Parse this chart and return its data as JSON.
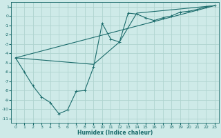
{
  "xlabel": "Humidex (Indice chaleur)",
  "background_color": "#ceeae8",
  "grid_color": "#afd4d0",
  "line_color": "#1a6b6b",
  "xlim": [
    -0.5,
    23.5
  ],
  "ylim": [
    -11.5,
    1.5
  ],
  "yticks": [
    1,
    0,
    -1,
    -2,
    -3,
    -4,
    -5,
    -6,
    -7,
    -8,
    -9,
    -10,
    -11
  ],
  "xticks": [
    0,
    1,
    2,
    3,
    4,
    5,
    6,
    7,
    8,
    9,
    10,
    11,
    12,
    13,
    14,
    15,
    16,
    17,
    18,
    19,
    20,
    21,
    22,
    23
  ],
  "line1_x": [
    0,
    1,
    2,
    3,
    4,
    5,
    6,
    7,
    8,
    9,
    10,
    11,
    12,
    13,
    14,
    15,
    16,
    17,
    18,
    19,
    20,
    21,
    22,
    23
  ],
  "line1_y": [
    -4.5,
    -6.0,
    -7.5,
    -8.7,
    -9.3,
    -10.5,
    -10.1,
    -8.1,
    -8.0,
    -5.5,
    -0.8,
    -2.5,
    -2.8,
    0.3,
    0.2,
    -0.2,
    -0.5,
    -0.2,
    0.0,
    0.4,
    0.5,
    0.7,
    1.0,
    1.1
  ],
  "line2_x": [
    0,
    23
  ],
  "line2_y": [
    -4.5,
    1.1
  ],
  "line3_x": [
    0,
    9,
    12,
    14,
    23
  ],
  "line3_y": [
    -4.5,
    -5.2,
    -2.8,
    0.3,
    1.1
  ]
}
